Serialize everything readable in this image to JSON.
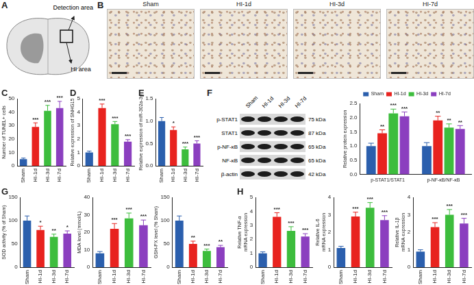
{
  "diagram": {
    "panel": "A",
    "labels": [
      "Detection area",
      "HI area"
    ]
  },
  "images": {
    "panel": "B",
    "titles": [
      "Sham",
      "HI-1d",
      "HI-3d",
      "HI-7d"
    ]
  },
  "blot": {
    "panel": "F",
    "lanes": [
      "Sham",
      "HI-1d",
      "HI-3d",
      "HI-7d"
    ],
    "rows": [
      {
        "label": "p-STAT1",
        "size": "75 kDa"
      },
      {
        "label": "STAT1",
        "size": "87 kDa"
      },
      {
        "label": "p-NF-κB",
        "size": "65 kDa"
      },
      {
        "label": "NF-κB",
        "size": "65 kDa"
      },
      {
        "label": "β-actin",
        "size": "42 kDa"
      }
    ]
  },
  "chart_data": [
    {
      "panel": "C",
      "type": "bar",
      "ylabel": "Number of TUNEL+ cells",
      "categories": [
        "Sham",
        "HI-1d",
        "HI-3d",
        "HI-7d"
      ],
      "colors": [
        "#2b5fad",
        "#e8231f",
        "#3dbd3d",
        "#8b3fbf"
      ],
      "values": [
        5,
        29,
        41,
        43
      ],
      "errors": [
        0.8,
        3,
        4,
        5
      ],
      "annotations": [
        null,
        "***",
        "***",
        "***"
      ],
      "ylim": [
        0,
        50
      ],
      "yticks": [
        0,
        10,
        20,
        30,
        40,
        50
      ],
      "grid": false
    },
    {
      "panel": "D",
      "type": "bar",
      "ylabel": "Relative expression of SNHG15",
      "categories": [
        "Sham",
        "HI-1d",
        "HI-3d",
        "HI-7d"
      ],
      "colors": [
        "#2b5fad",
        "#e8231f",
        "#3dbd3d",
        "#8b3fbf"
      ],
      "values": [
        1.0,
        4.3,
        3.1,
        1.8
      ],
      "errors": [
        0.1,
        0.3,
        0.2,
        0.15
      ],
      "annotations": [
        null,
        "***",
        "***",
        "***"
      ],
      "ylim": [
        0,
        5
      ],
      "yticks": [
        0,
        1,
        2,
        3,
        4,
        5
      ],
      "grid": false
    },
    {
      "panel": "E",
      "type": "bar",
      "ylabel": "Relative expression of miR-302a-3p",
      "categories": [
        "Sham",
        "HI-1d",
        "HI-3d",
        "HI-7d"
      ],
      "colors": [
        "#2b5fad",
        "#e8231f",
        "#3dbd3d",
        "#8b3fbf"
      ],
      "values": [
        1.0,
        0.8,
        0.37,
        0.5
      ],
      "errors": [
        0.08,
        0.07,
        0.05,
        0.06
      ],
      "annotations": [
        null,
        "*",
        "***",
        "***"
      ],
      "ylim": [
        0,
        1.5
      ],
      "yticks": [
        {
          "value": 0,
          "label": "0.0"
        },
        {
          "value": 0.5,
          "label": "0.5"
        },
        {
          "value": 1,
          "label": "1.0"
        },
        {
          "value": 1.5,
          "label": "1.5"
        }
      ],
      "grid": false
    },
    {
      "type": "bar",
      "ylabel": "Relative protein expression",
      "legend": "top",
      "categories": [
        "p-STAT1/STAT1",
        "p-NF-κB/NF-κB"
      ],
      "series": [
        {
          "name": "Sham",
          "color": "#2b5fad",
          "values": [
            1.0,
            1.0
          ],
          "errors": [
            0.1,
            0.12
          ],
          "annotations": [
            null,
            null
          ]
        },
        {
          "name": "HI-1d",
          "color": "#e8231f",
          "values": [
            1.45,
            1.9
          ],
          "errors": [
            0.12,
            0.15
          ],
          "annotations": [
            "**",
            "**"
          ]
        },
        {
          "name": "HI-3d",
          "color": "#3dbd3d",
          "values": [
            2.15,
            1.65
          ],
          "errors": [
            0.15,
            0.13
          ],
          "annotations": [
            "***",
            "**"
          ]
        },
        {
          "name": "HI-7d",
          "color": "#8b3fbf",
          "values": [
            2.05,
            1.6
          ],
          "errors": [
            0.15,
            0.12
          ],
          "annotations": [
            "***",
            "**"
          ]
        }
      ],
      "ylim": [
        0,
        2.5
      ],
      "yticks": [
        {
          "value": 0,
          "label": "0.0"
        },
        {
          "value": 0.5,
          "label": "0.5"
        },
        {
          "value": 1,
          "label": "1.0"
        },
        {
          "value": 1.5,
          "label": "1.5"
        },
        {
          "value": 2,
          "label": "2.0"
        },
        {
          "value": 2.5,
          "label": "2.5"
        }
      ],
      "grid": false
    },
    {
      "panel": "G",
      "type": "bar",
      "ylabel": "SOD activity (% of Sham)",
      "categories": [
        "Sham",
        "HI-1d",
        "HI-3d",
        "HI-7d"
      ],
      "colors": [
        "#2b5fad",
        "#e8231f",
        "#3dbd3d",
        "#8b3fbf"
      ],
      "values": [
        100,
        80,
        65,
        72
      ],
      "errors": [
        10,
        8,
        6,
        6
      ],
      "annotations": [
        null,
        "*",
        "**",
        "*"
      ],
      "ylim": [
        0,
        150
      ],
      "yticks": [
        0,
        50,
        100,
        150
      ],
      "grid": false
    },
    {
      "type": "bar",
      "ylabel": "MDA level (mmol/L)",
      "categories": [
        "Sham",
        "HI-1d",
        "HI-3d",
        "HI-7d"
      ],
      "colors": [
        "#2b5fad",
        "#e8231f",
        "#3dbd3d",
        "#8b3fbf"
      ],
      "values": [
        8,
        22,
        28,
        24
      ],
      "errors": [
        1,
        3,
        3,
        3
      ],
      "annotations": [
        null,
        "***",
        "***",
        "***"
      ],
      "ylim": [
        0,
        40
      ],
      "yticks": [
        0,
        10,
        20,
        30,
        40
      ],
      "grid": false
    },
    {
      "type": "bar",
      "ylabel": "GSH-PX level (% Sham)",
      "categories": [
        "Sham",
        "HI-1d",
        "HI-3d",
        "HI-7d"
      ],
      "colors": [
        "#2b5fad",
        "#e8231f",
        "#3dbd3d",
        "#8b3fbf"
      ],
      "values": [
        100,
        50,
        35,
        43
      ],
      "errors": [
        10,
        6,
        4,
        4
      ],
      "annotations": [
        null,
        "**",
        "***",
        "**"
      ],
      "ylim": [
        0,
        150
      ],
      "yticks": [
        0,
        50,
        100,
        150
      ],
      "grid": false
    },
    {
      "panel": "H",
      "type": "bar",
      "ylabel": [
        "Relative TNF-α",
        "mRNA expression"
      ],
      "categories": [
        "Sham",
        "HI-1d",
        "HI-3d",
        "HI-7d"
      ],
      "colors": [
        "#2b5fad",
        "#e8231f",
        "#3dbd3d",
        "#8b3fbf"
      ],
      "values": [
        1.0,
        3.6,
        2.6,
        2.2
      ],
      "errors": [
        0.1,
        0.3,
        0.3,
        0.2
      ],
      "annotations": [
        null,
        "***",
        "***",
        "***"
      ],
      "ylim": [
        0,
        5
      ],
      "yticks": [
        0,
        1,
        2,
        3,
        4,
        5
      ],
      "grid": false
    },
    {
      "type": "bar",
      "ylabel": [
        "Relative IL-6",
        "mRNA expression"
      ],
      "categories": [
        "Sham",
        "HI-1d",
        "HI-3d",
        "HI-7d"
      ],
      "colors": [
        "#2b5fad",
        "#e8231f",
        "#3dbd3d",
        "#8b3fbf"
      ],
      "values": [
        1.1,
        2.9,
        3.4,
        2.7
      ],
      "errors": [
        0.1,
        0.25,
        0.3,
        0.25
      ],
      "annotations": [
        null,
        "***",
        "***",
        "***"
      ],
      "ylim": [
        0,
        4
      ],
      "yticks": [
        0,
        1,
        2,
        3,
        4
      ],
      "grid": false
    },
    {
      "type": "bar",
      "ylabel": [
        "Relative IL-1β",
        "mRNA expression"
      ],
      "categories": [
        "Sham",
        "HI-1d",
        "HI-3d",
        "HI-7d"
      ],
      "colors": [
        "#2b5fad",
        "#e8231f",
        "#3dbd3d",
        "#8b3fbf"
      ],
      "values": [
        0.9,
        2.3,
        3.0,
        2.5
      ],
      "errors": [
        0.1,
        0.25,
        0.3,
        0.3
      ],
      "annotations": [
        null,
        "***",
        "***",
        "***"
      ],
      "ylim": [
        0,
        4
      ],
      "yticks": [
        0,
        1,
        2,
        3,
        4
      ],
      "grid": false
    }
  ]
}
